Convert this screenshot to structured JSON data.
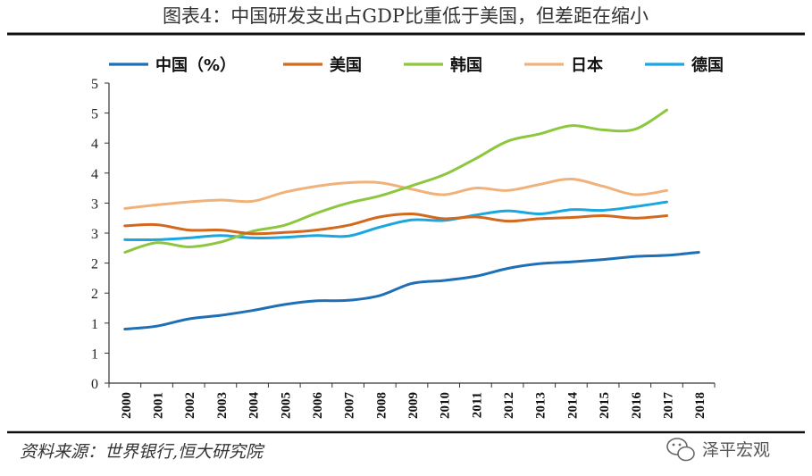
{
  "chart_data": {
    "type": "line",
    "title": "图表4：中国研发支出占GDP比重低于美国，但差距在缩小",
    "xlabel": "",
    "ylabel": "",
    "categories": [
      "2000",
      "2001",
      "2002",
      "2003",
      "2004",
      "2005",
      "2006",
      "2007",
      "2008",
      "2009",
      "2010",
      "2011",
      "2012",
      "2013",
      "2014",
      "2015",
      "2016",
      "2017",
      "2018"
    ],
    "y_tick_labels": [
      "0",
      "1",
      "1",
      "2",
      "2",
      "3",
      "3",
      "4",
      "4",
      "5",
      "5"
    ],
    "ylim": [
      0,
      5
    ],
    "grid": false,
    "legend_position": "top",
    "series": [
      {
        "name": "中国（%）",
        "color": "#1f6fb6",
        "values": [
          0.9,
          0.95,
          1.07,
          1.13,
          1.21,
          1.31,
          1.37,
          1.38,
          1.46,
          1.66,
          1.71,
          1.78,
          1.91,
          1.99,
          2.02,
          2.06,
          2.11,
          2.13,
          2.18
        ]
      },
      {
        "name": "美国",
        "color": "#d2691e",
        "values": [
          2.62,
          2.64,
          2.55,
          2.55,
          2.49,
          2.51,
          2.55,
          2.63,
          2.77,
          2.82,
          2.74,
          2.77,
          2.7,
          2.74,
          2.76,
          2.79,
          2.75,
          2.79,
          null
        ]
      },
      {
        "name": "韩国",
        "color": "#8dc63f",
        "values": [
          2.18,
          2.34,
          2.27,
          2.35,
          2.53,
          2.63,
          2.83,
          3.0,
          3.12,
          3.29,
          3.47,
          3.74,
          4.03,
          4.15,
          4.29,
          4.22,
          4.23,
          4.55,
          null
        ]
      },
      {
        "name": "日本",
        "color": "#f0b27a",
        "values": [
          2.91,
          2.97,
          3.02,
          3.05,
          3.03,
          3.18,
          3.28,
          3.34,
          3.34,
          3.23,
          3.14,
          3.25,
          3.21,
          3.31,
          3.4,
          3.28,
          3.14,
          3.21,
          null
        ]
      },
      {
        "name": "德国",
        "color": "#1aa7e0",
        "values": [
          2.39,
          2.39,
          2.42,
          2.46,
          2.42,
          2.43,
          2.46,
          2.45,
          2.6,
          2.72,
          2.71,
          2.8,
          2.87,
          2.82,
          2.89,
          2.88,
          2.94,
          3.02,
          null
        ]
      }
    ]
  },
  "source": "资料来源：世界银行,恒大研究院",
  "watermark": "泽平宏观"
}
